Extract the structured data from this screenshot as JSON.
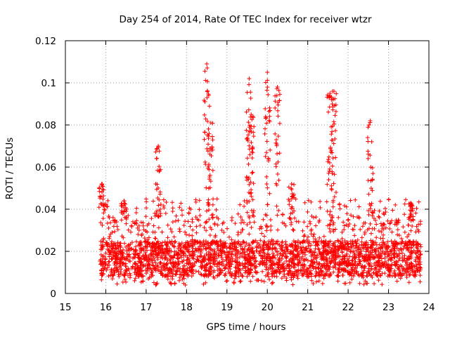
{
  "chart_data": {
    "type": "scatter",
    "title": "Day 254 of 2014, Rate Of TEC Index for receiver wtzr",
    "xlabel": "GPS time / hours",
    "ylabel": "ROTI / TECUs",
    "xlim": [
      15,
      24
    ],
    "ylim": [
      0,
      0.12
    ],
    "xticks": [
      15,
      16,
      17,
      18,
      19,
      20,
      21,
      22,
      23,
      24
    ],
    "yticks": [
      0,
      0.02,
      0.04,
      0.06,
      0.08,
      0.1,
      0.12
    ],
    "xtick_labels": [
      "15",
      "16",
      "17",
      "18",
      "19",
      "20",
      "21",
      "22",
      "23",
      "24"
    ],
    "ytick_labels": [
      "0",
      "0.02",
      "0.04",
      "0.06",
      "0.08",
      "0.1",
      "0.12"
    ],
    "grid": true,
    "marker": "+",
    "color": "#ff0000",
    "series": [
      {
        "name": "ROTI",
        "x_range": [
          15.85,
          23.8
        ],
        "baseline_range": [
          0.004,
          0.035
        ],
        "typical_range": [
          0.008,
          0.025
        ],
        "peaks": [
          {
            "x": 15.9,
            "y": 0.052
          },
          {
            "x": 16.45,
            "y": 0.044
          },
          {
            "x": 17.3,
            "y": 0.07
          },
          {
            "x": 18.5,
            "y": 0.109
          },
          {
            "x": 18.6,
            "y": 0.081
          },
          {
            "x": 19.55,
            "y": 0.102
          },
          {
            "x": 19.6,
            "y": 0.085
          },
          {
            "x": 20.0,
            "y": 0.105
          },
          {
            "x": 20.25,
            "y": 0.098
          },
          {
            "x": 20.6,
            "y": 0.052
          },
          {
            "x": 21.55,
            "y": 0.095
          },
          {
            "x": 21.65,
            "y": 0.096
          },
          {
            "x": 22.55,
            "y": 0.082
          },
          {
            "x": 23.55,
            "y": 0.043
          }
        ]
      }
    ]
  }
}
